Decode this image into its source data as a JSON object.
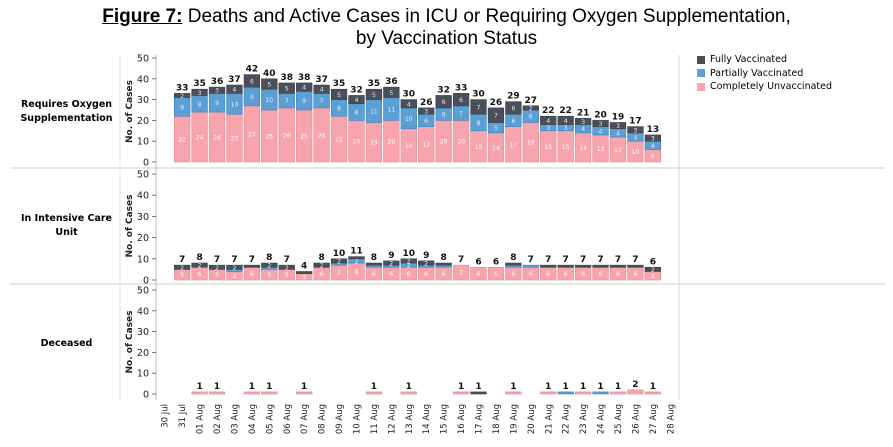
{
  "title": {
    "prefix": "Figure 7:",
    "line1": " Deaths and Active Cases in ICU or Requiring Oxygen Supplementation,",
    "line2": "by Vaccination Status"
  },
  "colors": {
    "fully": "#4a4f59",
    "partial": "#5b9fd5",
    "unvacc": "#f7a4ad",
    "fully_stroke": "#3a3e46",
    "partial_stroke": "#3f83bd",
    "unvacc_stroke": "#e38a94"
  },
  "chart_data": {
    "type": "bar",
    "stacked": true,
    "legend": {
      "placement": "top-right",
      "items": [
        {
          "label": "Fully Vaccinated",
          "color": "#4a4f59"
        },
        {
          "label": "Partially Vaccinated",
          "color": "#5b9fd5"
        },
        {
          "label": "Completely Unvaccinated",
          "color": "#f7a4ad"
        }
      ]
    },
    "categories": [
      "30 Jul",
      "31 Jul",
      "01 Aug",
      "02 Aug",
      "03 Aug",
      "04 Aug",
      "05 Aug",
      "06 Aug",
      "07 Aug",
      "08 Aug",
      "09 Aug",
      "10 Aug",
      "11 Aug",
      "12 Aug",
      "13 Aug",
      "14 Aug",
      "15 Aug",
      "16 Aug",
      "17 Aug",
      "18 Aug",
      "19 Aug",
      "20 Aug",
      "21 Aug",
      "22 Aug",
      "23 Aug",
      "24 Aug",
      "25 Aug",
      "26 Aug",
      "27 Aug",
      "28 Aug"
    ],
    "panels": [
      {
        "label_lines": [
          "Requires Oxygen",
          "Supplementation"
        ],
        "ylabel": "No. of Cases",
        "ylim": [
          0,
          50
        ],
        "yticks": [
          0,
          10,
          20,
          30,
          40,
          50
        ],
        "totals": [
          null,
          33,
          35,
          36,
          37,
          42,
          40,
          38,
          38,
          37,
          35,
          32,
          35,
          36,
          30,
          26,
          32,
          33,
          30,
          26,
          29,
          27,
          22,
          22,
          21,
          20,
          19,
          17,
          13,
          null
        ],
        "series": [
          {
            "name": "Completely Unvaccinated",
            "values": [
              null,
              22,
              24,
              24,
              23,
              27,
              25,
              26,
              25,
              26,
              22,
              20,
              19,
              20,
              16,
              17,
              20,
              20,
              15,
              14,
              17,
              19,
              15,
              15,
              14,
              13,
              12,
              10,
              6,
              null
            ]
          },
          {
            "name": "Partially Vaccinated",
            "values": [
              null,
              9,
              8,
              9,
              10,
              9,
              10,
              7,
              9,
              7,
              8,
              8,
              11,
              11,
              10,
              6,
              6,
              7,
              8,
              5,
              6,
              6,
              3,
              3,
              4,
              4,
              4,
              4,
              4,
              null
            ]
          },
          {
            "name": "Fully Vaccinated",
            "values": [
              null,
              2,
              3,
              3,
              4,
              6,
              5,
              5,
              4,
              4,
              5,
              4,
              5,
              5,
              4,
              3,
              6,
              6,
              7,
              7,
              6,
              2,
              4,
              4,
              3,
              3,
              3,
              3,
              3,
              null
            ]
          }
        ]
      },
      {
        "label_lines": [
          "In Intensive Care",
          "Unit"
        ],
        "ylabel": "No. of Cases",
        "ylim": [
          0,
          50
        ],
        "yticks": [
          0,
          10,
          20,
          30,
          40,
          50
        ],
        "totals": [
          null,
          7,
          8,
          7,
          7,
          7,
          8,
          7,
          4,
          8,
          10,
          11,
          8,
          9,
          10,
          9,
          8,
          7,
          6,
          6,
          8,
          7,
          7,
          7,
          7,
          7,
          7,
          7,
          6,
          null
        ],
        "series": [
          {
            "name": "Completely Unvaccinated",
            "values": [
              null,
              5,
              6,
              5,
              4,
              6,
              5,
              5,
              3,
              6,
              7,
              8,
              6,
              6,
              6,
              6,
              6,
              7,
              6,
              6,
              6,
              6,
              6,
              6,
              6,
              6,
              6,
              6,
              4,
              null
            ]
          },
          {
            "name": "Partially Vaccinated",
            "values": [
              null,
              0,
              0,
              0,
              1,
              0,
              1,
              0,
              0,
              0,
              1,
              2,
              1,
              1,
              2,
              1,
              1,
              0,
              0,
              0,
              1,
              1,
              0,
              0,
              0,
              0,
              0,
              0,
              0,
              null
            ]
          },
          {
            "name": "Fully Vaccinated",
            "values": [
              null,
              2,
              2,
              2,
              2,
              1,
              2,
              2,
              1,
              2,
              2,
              1,
              1,
              2,
              2,
              2,
              1,
              0,
              0,
              0,
              1,
              0,
              1,
              1,
              1,
              1,
              1,
              1,
              2,
              null
            ]
          }
        ]
      },
      {
        "label_lines": [
          "Deceased"
        ],
        "ylabel": "No. of Cases",
        "ylim": [
          0,
          50
        ],
        "yticks": [
          0,
          10,
          20,
          30,
          40,
          50
        ],
        "totals": [
          null,
          null,
          1,
          1,
          null,
          1,
          1,
          null,
          1,
          null,
          null,
          null,
          1,
          null,
          1,
          null,
          null,
          1,
          1,
          null,
          1,
          null,
          1,
          1,
          1,
          1,
          1,
          2,
          1,
          null
        ],
        "series": [
          {
            "name": "Completely Unvaccinated",
            "values": [
              null,
              0,
              1,
              1,
              0,
              1,
              1,
              0,
              1,
              0,
              0,
              0,
              1,
              0,
              1,
              0,
              0,
              1,
              0,
              0,
              1,
              0,
              1,
              0,
              1,
              0,
              1,
              2,
              1,
              null
            ]
          },
          {
            "name": "Partially Vaccinated",
            "values": [
              null,
              0,
              0,
              0,
              0,
              0,
              0,
              0,
              0,
              0,
              0,
              0,
              0,
              0,
              0,
              0,
              0,
              0,
              0,
              0,
              0,
              0,
              0,
              1,
              0,
              1,
              0,
              0,
              0,
              null
            ]
          },
          {
            "name": "Fully Vaccinated",
            "values": [
              null,
              0,
              0,
              0,
              0,
              0,
              0,
              0,
              0,
              0,
              0,
              0,
              0,
              0,
              0,
              0,
              0,
              0,
              1,
              0,
              0,
              0,
              0,
              0,
              0,
              0,
              0,
              0,
              0,
              null
            ]
          }
        ]
      }
    ],
    "segment_labels": [
      {
        "unvacc": [
          null,
          22,
          24,
          24,
          23,
          27,
          25,
          26,
          25,
          26,
          22,
          20,
          19,
          20,
          16,
          17,
          20,
          20,
          15,
          14,
          17,
          19,
          15,
          15,
          14,
          13,
          12,
          10,
          6,
          null
        ],
        "partial": [
          null,
          9,
          8,
          9,
          10,
          9,
          10,
          7,
          9,
          7,
          8,
          8,
          11,
          11,
          10,
          6,
          6,
          7,
          8,
          5,
          6,
          6,
          3,
          3,
          4,
          4,
          4,
          4,
          4,
          null
        ],
        "fully": [
          null,
          2,
          3,
          3,
          4,
          6,
          5,
          5,
          4,
          4,
          5,
          4,
          5,
          5,
          4,
          3,
          6,
          6,
          7,
          7,
          6,
          2,
          4,
          4,
          3,
          3,
          3,
          3,
          3,
          null
        ]
      },
      {
        "unvacc": [
          null,
          5,
          6,
          5,
          4,
          6,
          5,
          5,
          3,
          6,
          7,
          8,
          6,
          6,
          6,
          6,
          6,
          7,
          6,
          6,
          6,
          6,
          6,
          6,
          6,
          6,
          6,
          6,
          4,
          null
        ],
        "partial": [
          null,
          null,
          null,
          null,
          1,
          null,
          1,
          null,
          null,
          null,
          1,
          2,
          1,
          1,
          2,
          1,
          1,
          null,
          null,
          null,
          1,
          1,
          null,
          null,
          null,
          null,
          null,
          null,
          null,
          null
        ],
        "fully": [
          null,
          2,
          2,
          2,
          2,
          1,
          2,
          2,
          1,
          2,
          2,
          1,
          1,
          2,
          2,
          2,
          1,
          null,
          null,
          null,
          1,
          null,
          1,
          1,
          1,
          1,
          1,
          1,
          2,
          null
        ]
      },
      {
        "unvacc": [
          null,
          null,
          null,
          null,
          null,
          null,
          null,
          null,
          null,
          null,
          null,
          null,
          null,
          null,
          null,
          null,
          null,
          null,
          null,
          null,
          null,
          null,
          null,
          null,
          null,
          null,
          null,
          null,
          null,
          null
        ],
        "partial": [
          null,
          null,
          null,
          null,
          null,
          null,
          null,
          null,
          null,
          null,
          null,
          null,
          null,
          null,
          null,
          null,
          null,
          null,
          null,
          null,
          null,
          null,
          null,
          null,
          null,
          null,
          null,
          null,
          null,
          null
        ],
        "fully": [
          null,
          null,
          null,
          null,
          null,
          null,
          null,
          null,
          null,
          null,
          null,
          null,
          null,
          null,
          null,
          null,
          null,
          null,
          null,
          null,
          null,
          null,
          null,
          null,
          null,
          null,
          null,
          null,
          null,
          null
        ]
      }
    ]
  }
}
